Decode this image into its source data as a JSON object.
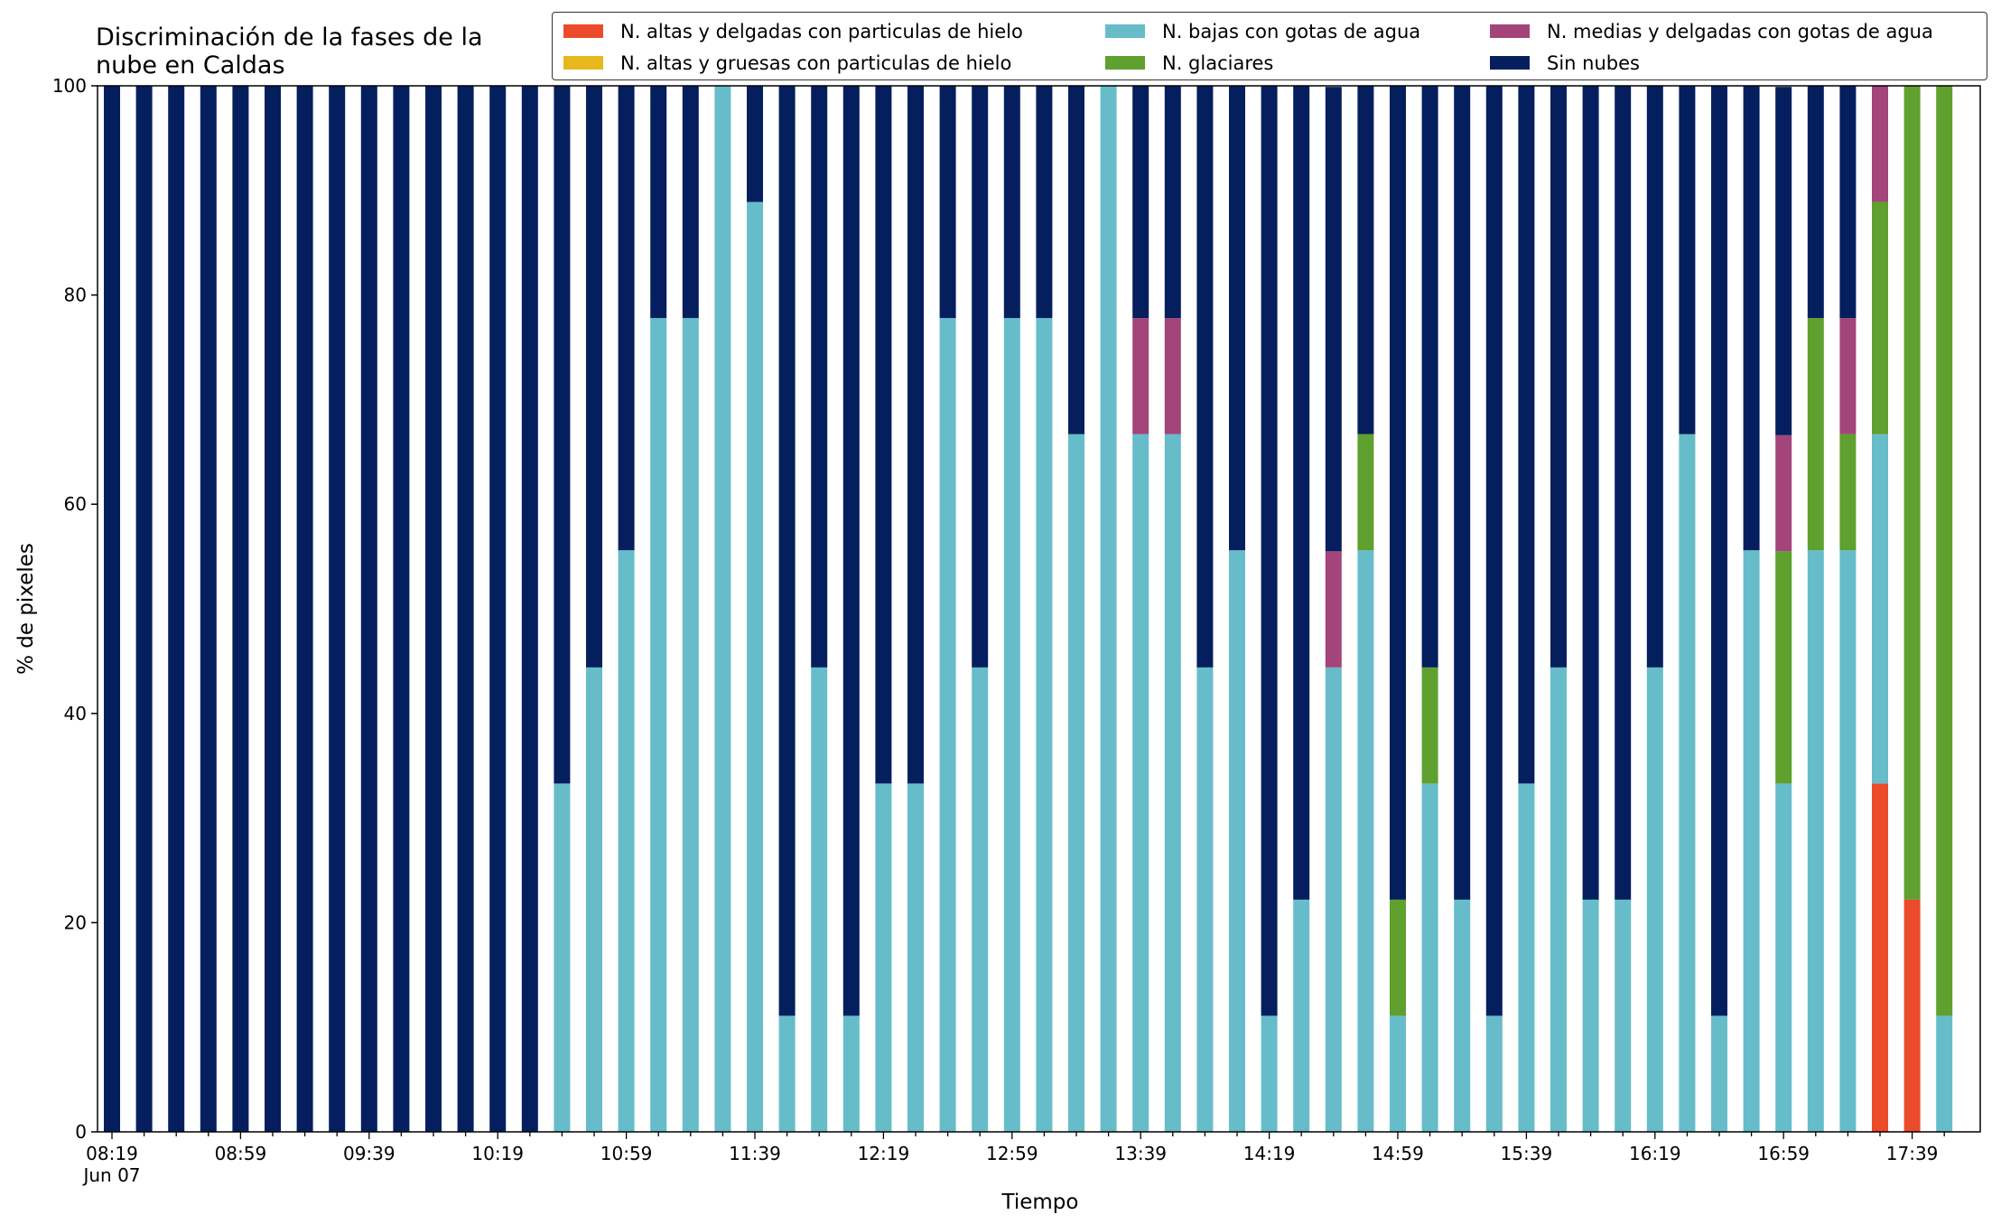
{
  "chart_data": {
    "type": "bar",
    "stacked": true,
    "title": "Discriminación de la fases de la\nnube en Caldas",
    "xlabel": "Tiempo",
    "ylabel": "% de pixeles",
    "ylim": [
      0,
      100
    ],
    "yticks": [
      0,
      20,
      40,
      60,
      80,
      100
    ],
    "xtick_labels": [
      "08:19\nJun 07",
      "08:59",
      "09:39",
      "10:19",
      "10:59",
      "11:39",
      "12:19",
      "12:59",
      "13:39",
      "14:19",
      "14:59",
      "15:39",
      "16:19",
      "16:59",
      "17:39"
    ],
    "grid": false,
    "legend_position": "top-right",
    "categories": [
      "08:19",
      "08:29",
      "08:39",
      "08:49",
      "08:59",
      "09:09",
      "09:19",
      "09:29",
      "09:39",
      "09:49",
      "09:59",
      "10:09",
      "10:19",
      "10:29",
      "10:39",
      "10:49",
      "10:59",
      "11:09",
      "11:19",
      "11:29",
      "11:39",
      "11:49",
      "11:59",
      "12:09",
      "12:19",
      "12:29",
      "12:39",
      "12:49",
      "12:59",
      "13:09",
      "13:19",
      "13:29",
      "13:39",
      "13:49",
      "13:59",
      "14:09",
      "14:19",
      "14:29",
      "14:39",
      "14:49",
      "14:59",
      "15:09",
      "15:19",
      "15:29",
      "15:39",
      "15:49",
      "15:59",
      "16:09",
      "16:19",
      "16:29",
      "16:39",
      "16:49",
      "16:59",
      "17:09",
      "17:19",
      "17:29",
      "17:39",
      "17:49"
    ],
    "series": [
      {
        "name": "N. altas y delgadas con particulas de hielo",
        "color": "#ec4b2b",
        "values": [
          0,
          0,
          0,
          0,
          0,
          0,
          0,
          0,
          0,
          0,
          0,
          0,
          0,
          0,
          0,
          0,
          0,
          0,
          0,
          0,
          0,
          0,
          0,
          0,
          0,
          0,
          0,
          0,
          0,
          0,
          0,
          0,
          0,
          0,
          0,
          0,
          0,
          0,
          0,
          0,
          0,
          0,
          0,
          0,
          0,
          0,
          0,
          0,
          0,
          0,
          0,
          0,
          0,
          0,
          0,
          33.3,
          22.2,
          0
        ]
      },
      {
        "name": "N. altas y gruesas con particulas de hielo",
        "color": "#e5b91e",
        "values": [
          0,
          0,
          0,
          0,
          0,
          0,
          0,
          0,
          0,
          0,
          0,
          0,
          0,
          0,
          0,
          0,
          0,
          0,
          0,
          0,
          0,
          0,
          0,
          0,
          0,
          0,
          0,
          0,
          0,
          0,
          0,
          0,
          0,
          0,
          0,
          0,
          0,
          0,
          0,
          0,
          0,
          0,
          0,
          0,
          0,
          0,
          0,
          0,
          0,
          0,
          0,
          0,
          0,
          0,
          0,
          0,
          0,
          0
        ]
      },
      {
        "name": "N. bajas con gotas de agua",
        "color": "#66bdc9",
        "values": [
          0,
          0,
          0,
          0,
          0,
          0,
          0,
          0,
          0,
          0,
          0,
          0,
          0,
          0,
          33.3,
          44.4,
          55.6,
          77.8,
          77.8,
          100,
          88.9,
          11.1,
          44.4,
          11.1,
          33.3,
          33.3,
          77.8,
          44.4,
          77.8,
          77.8,
          66.7,
          100,
          66.7,
          66.7,
          44.4,
          55.6,
          11.1,
          22.2,
          44.4,
          55.6,
          11.1,
          33.3,
          22.2,
          11.1,
          33.3,
          44.4,
          22.2,
          22.2,
          44.4,
          66.7,
          11.1,
          55.6,
          33.3,
          55.6,
          55.6,
          33.4,
          0,
          11.1
        ]
      },
      {
        "name": "N. glaciares",
        "color": "#5fa02e",
        "values": [
          0,
          0,
          0,
          0,
          0,
          0,
          0,
          0,
          0,
          0,
          0,
          0,
          0,
          0,
          0,
          0,
          0,
          0,
          0,
          0,
          0,
          0,
          0,
          0,
          0,
          0,
          0,
          0,
          0,
          0,
          0,
          0,
          0,
          0,
          0,
          0,
          0,
          0,
          0,
          11.1,
          11.1,
          11.1,
          0,
          0,
          0,
          0,
          0,
          0,
          0,
          0,
          0,
          0,
          22.2,
          22.2,
          11.1,
          22.2,
          77.8,
          88.9
        ]
      },
      {
        "name": "N. medias y delgadas con gotas de agua",
        "color": "#a3457a",
        "values": [
          0,
          0,
          0,
          0,
          0,
          0,
          0,
          0,
          0,
          0,
          0,
          0,
          0,
          0,
          0,
          0,
          0,
          0,
          0,
          0,
          0,
          0,
          0,
          0,
          0,
          0,
          0,
          0,
          0,
          0,
          0,
          0,
          11.1,
          11.1,
          0,
          0,
          0,
          0,
          11.1,
          0,
          0,
          0,
          0,
          0,
          0,
          0,
          0,
          0,
          0,
          0,
          0,
          0,
          11.1,
          0,
          11.1,
          11.1,
          0,
          0
        ]
      },
      {
        "name": "Sin nubes",
        "color": "#051f5e",
        "values": [
          100,
          100,
          100,
          100,
          100,
          100,
          100,
          100,
          100,
          100,
          100,
          100,
          100,
          100,
          66.7,
          55.6,
          44.4,
          22.2,
          22.2,
          0,
          11.1,
          88.9,
          55.6,
          88.9,
          66.7,
          66.7,
          22.2,
          55.6,
          22.2,
          22.2,
          33.3,
          0,
          22.2,
          22.2,
          55.6,
          44.4,
          88.9,
          77.8,
          44.4,
          33.3,
          77.8,
          55.6,
          77.8,
          88.9,
          66.7,
          55.6,
          77.8,
          77.8,
          55.6,
          33.3,
          88.9,
          44.4,
          33.3,
          22.2,
          22.2,
          0,
          0,
          0
        ]
      }
    ]
  }
}
